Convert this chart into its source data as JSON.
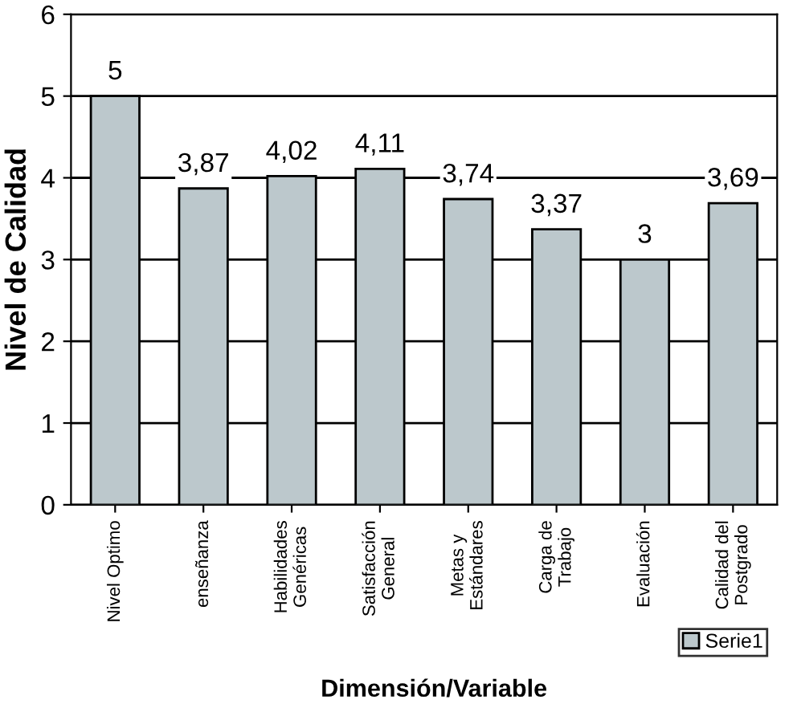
{
  "chart_data": {
    "type": "bar",
    "xlabel": "Dimensión/Variable",
    "ylabel": "Nivel de Calidad",
    "categories": [
      "Nivel Optimo",
      "enseñanza",
      "Habilidades\nGenéricas",
      "Satisfacción\nGeneral",
      "Metas y\nEstándares",
      "Carga de\nTrabajo",
      "Evaluación",
      "Calidad del\nPostgrado"
    ],
    "series": [
      {
        "name": "Serie1",
        "color": "#bcc8cc",
        "values": [
          5,
          3.87,
          4.02,
          4.11,
          3.74,
          3.37,
          3,
          3.69
        ],
        "value_labels": [
          "5",
          "3,87",
          "4,02",
          "4,11",
          "3,74",
          "3,37",
          "3",
          "3,69"
        ]
      }
    ],
    "ylim": [
      0,
      6
    ],
    "yticks": [
      0,
      1,
      2,
      3,
      4,
      5,
      6
    ],
    "grid": "y",
    "legend": "bottom right"
  }
}
